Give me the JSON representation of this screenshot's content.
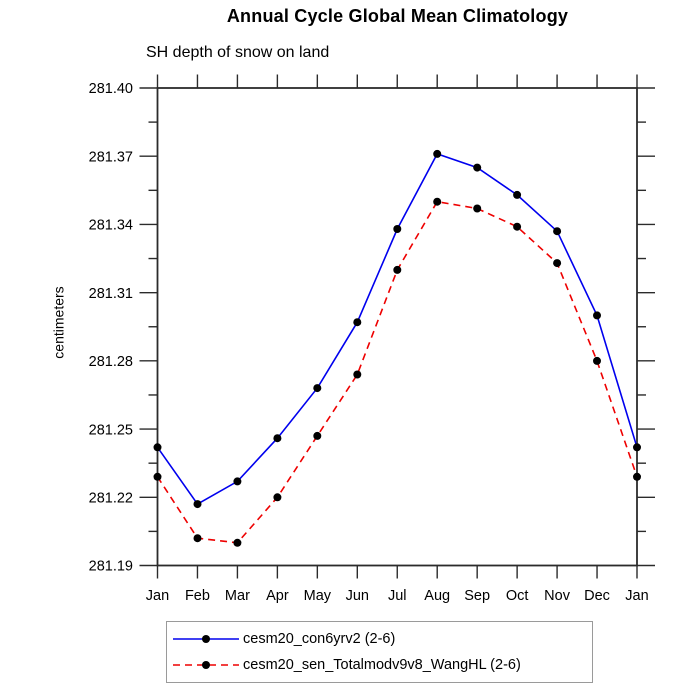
{
  "chart_data": {
    "type": "line",
    "title": "Annual Cycle Global Mean Climatology",
    "subtitle": "SH depth of snow on land",
    "ylabel": "centimeters",
    "xlabel": "",
    "categories": [
      "Jan",
      "Feb",
      "Mar",
      "Apr",
      "May",
      "Jun",
      "Jul",
      "Aug",
      "Sep",
      "Oct",
      "Nov",
      "Dec",
      "Jan"
    ],
    "ylim": [
      281.19,
      281.4
    ],
    "y_major_step": 0.03,
    "y_minor_step": 0.015,
    "y_tick_labels": [
      "281.40",
      "281.37",
      "281.34",
      "281.31",
      "281.28",
      "281.25",
      "281.22",
      "281.19"
    ],
    "grid": false,
    "axis_color": "#2b2b2b",
    "marker_color": "#000000",
    "legend_position": "bottom-outside-boxed",
    "series": [
      {
        "name": "cesm20_con6yrv2 (2-6)",
        "color": "#0000ee",
        "line_style": "solid",
        "marker": "filled-circle",
        "values": [
          281.242,
          281.217,
          281.227,
          281.246,
          281.268,
          281.297,
          281.338,
          281.371,
          281.365,
          281.353,
          281.337,
          281.3,
          281.242
        ]
      },
      {
        "name": "cesm20_sen_Totalmodv9v8_WangHL (2-6)",
        "color": "#ee0000",
        "line_style": "dashed",
        "marker": "filled-circle",
        "values": [
          281.229,
          281.202,
          281.2,
          281.22,
          281.247,
          281.274,
          281.32,
          281.35,
          281.347,
          281.339,
          281.323,
          281.28,
          281.229
        ]
      }
    ]
  }
}
